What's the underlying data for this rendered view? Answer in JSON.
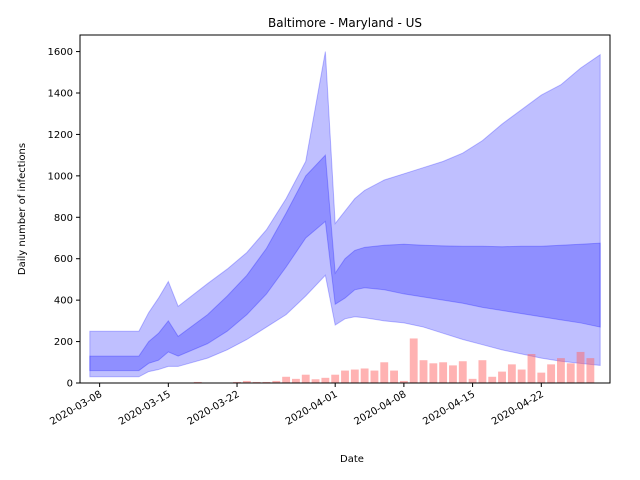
{
  "chart_data": {
    "type": "area",
    "title": "Baltimore - Maryland - US",
    "xlabel": "Date",
    "ylabel": "Daily number of infections",
    "xlim": [
      "2020-03-06",
      "2020-04-29"
    ],
    "ylim": [
      0,
      1680
    ],
    "yticks": [
      0,
      200,
      400,
      600,
      800,
      1000,
      1200,
      1400,
      1600
    ],
    "xticks": [
      "2020-03-08",
      "2020-03-15",
      "2020-03-22",
      "2020-04-01",
      "2020-04-08",
      "2020-04-15",
      "2020-04-22"
    ],
    "grid": false,
    "colors": {
      "band": "#0000ff",
      "bars": "#ff6666"
    },
    "bands": [
      {
        "level": "outer",
        "x": [
          "2020-03-07",
          "2020-03-12",
          "2020-03-13",
          "2020-03-14",
          "2020-03-15",
          "2020-03-16",
          "2020-03-19",
          "2020-03-21",
          "2020-03-23",
          "2020-03-25",
          "2020-03-27",
          "2020-03-29",
          "2020-03-31",
          "2020-04-01",
          "2020-04-02",
          "2020-04-03",
          "2020-04-04",
          "2020-04-06",
          "2020-04-08",
          "2020-04-10",
          "2020-04-12",
          "2020-04-14",
          "2020-04-16",
          "2020-04-18",
          "2020-04-20",
          "2020-04-22",
          "2020-04-24",
          "2020-04-26",
          "2020-04-28"
        ],
        "upper": [
          250,
          250,
          340,
          410,
          490,
          370,
          480,
          550,
          630,
          740,
          890,
          1070,
          1600,
          770,
          830,
          890,
          930,
          980,
          1010,
          1040,
          1070,
          1110,
          1170,
          1250,
          1320,
          1390,
          1440,
          1520,
          1585
        ],
        "lower": [
          30,
          30,
          55,
          65,
          80,
          80,
          120,
          160,
          210,
          270,
          330,
          420,
          520,
          280,
          310,
          320,
          315,
          300,
          290,
          270,
          240,
          210,
          185,
          160,
          140,
          120,
          105,
          95,
          85
        ]
      },
      {
        "level": "inner",
        "x": [
          "2020-03-07",
          "2020-03-12",
          "2020-03-13",
          "2020-03-14",
          "2020-03-15",
          "2020-03-16",
          "2020-03-19",
          "2020-03-21",
          "2020-03-23",
          "2020-03-25",
          "2020-03-27",
          "2020-03-29",
          "2020-03-31",
          "2020-04-01",
          "2020-04-02",
          "2020-04-03",
          "2020-04-04",
          "2020-04-06",
          "2020-04-08",
          "2020-04-10",
          "2020-04-12",
          "2020-04-14",
          "2020-04-16",
          "2020-04-18",
          "2020-04-20",
          "2020-04-22",
          "2020-04-24",
          "2020-04-26",
          "2020-04-28"
        ],
        "upper": [
          130,
          130,
          200,
          240,
          300,
          225,
          330,
          420,
          520,
          650,
          820,
          1000,
          1100,
          530,
          600,
          640,
          655,
          665,
          670,
          665,
          662,
          660,
          660,
          658,
          660,
          660,
          665,
          670,
          675
        ],
        "lower": [
          60,
          60,
          95,
          110,
          150,
          130,
          190,
          250,
          330,
          430,
          560,
          700,
          780,
          380,
          410,
          450,
          460,
          450,
          430,
          415,
          400,
          385,
          365,
          350,
          335,
          320,
          305,
          290,
          270
        ]
      }
    ],
    "bars": {
      "x": [
        "2020-03-18",
        "2020-03-22",
        "2020-03-23",
        "2020-03-24",
        "2020-03-25",
        "2020-03-26",
        "2020-03-27",
        "2020-03-28",
        "2020-03-29",
        "2020-03-30",
        "2020-03-31",
        "2020-04-01",
        "2020-04-02",
        "2020-04-03",
        "2020-04-04",
        "2020-04-05",
        "2020-04-06",
        "2020-04-07",
        "2020-04-08",
        "2020-04-09",
        "2020-04-10",
        "2020-04-11",
        "2020-04-12",
        "2020-04-13",
        "2020-04-14",
        "2020-04-15",
        "2020-04-16",
        "2020-04-17",
        "2020-04-18",
        "2020-04-19",
        "2020-04-20",
        "2020-04-21",
        "2020-04-22",
        "2020-04-23",
        "2020-04-24",
        "2020-04-25",
        "2020-04-26",
        "2020-04-27"
      ],
      "values": [
        5,
        5,
        10,
        5,
        5,
        10,
        30,
        20,
        40,
        18,
        25,
        40,
        60,
        65,
        70,
        60,
        100,
        60,
        10,
        215,
        110,
        95,
        100,
        85,
        105,
        20,
        110,
        30,
        55,
        90,
        65,
        140,
        50,
        90,
        120,
        95,
        150,
        120
      ]
    }
  }
}
